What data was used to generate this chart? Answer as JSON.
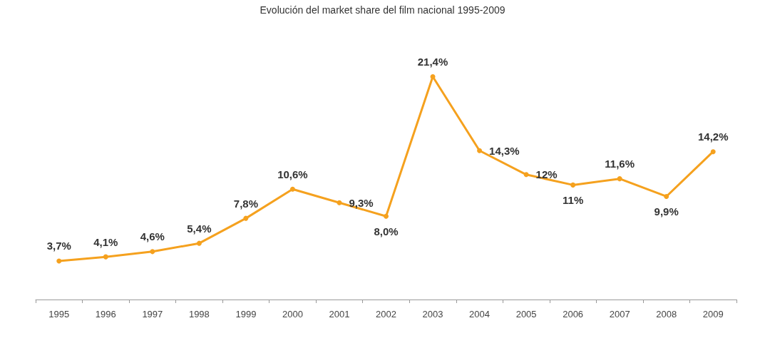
{
  "chart_data": {
    "type": "line",
    "title": "Evolución del market share del film nacional 1995-2009",
    "categories": [
      "1995",
      "1996",
      "1997",
      "1998",
      "1999",
      "2000",
      "2001",
      "2002",
      "2003",
      "2004",
      "2005",
      "2006",
      "2007",
      "2008",
      "2009"
    ],
    "series": [
      {
        "color": "#f5a11e",
        "values": [
          3.7,
          4.1,
          4.6,
          5.4,
          7.8,
          10.6,
          9.3,
          8.0,
          21.4,
          14.3,
          12,
          11,
          11.6,
          9.9,
          14.2
        ],
        "value_labels": [
          "3,7%",
          "4,1%",
          "4,6%",
          "5,4%",
          "7,8%",
          "10,6%",
          "9,3%",
          "8,0%",
          "21,4%",
          "14,3%",
          "12%",
          "11%",
          "11,6%",
          "9,9%",
          "14,2%"
        ]
      }
    ],
    "marker": "circle",
    "line_style": "solid",
    "grid": false
  }
}
